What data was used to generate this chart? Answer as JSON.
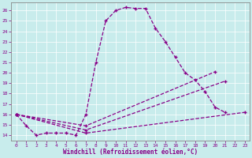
{
  "xlabel": "Windchill (Refroidissement éolien,°C)",
  "ylabel": "",
  "background_color": "#c8ecec",
  "line_color": "#880088",
  "xlim": [
    -0.5,
    23.5
  ],
  "ylim": [
    13.5,
    26.8
  ],
  "yticks": [
    14,
    15,
    16,
    17,
    18,
    19,
    20,
    21,
    22,
    23,
    24,
    25,
    26
  ],
  "xticks": [
    0,
    1,
    2,
    3,
    4,
    5,
    6,
    7,
    8,
    9,
    10,
    11,
    12,
    13,
    14,
    15,
    16,
    17,
    18,
    19,
    20,
    21,
    22,
    23
  ],
  "lines": [
    {
      "x": [
        0,
        1,
        2,
        3,
        4,
        5,
        6,
        7,
        8,
        9,
        10,
        11,
        12,
        13,
        14,
        15,
        16,
        17,
        18,
        19,
        20,
        21
      ],
      "y": [
        16.0,
        14.9,
        14.0,
        14.2,
        14.2,
        14.2,
        14.0,
        16.0,
        21.0,
        25.0,
        26.0,
        26.3,
        26.2,
        26.2,
        24.3,
        23.0,
        21.5,
        20.0,
        19.3,
        18.2,
        16.7,
        16.2
      ]
    },
    {
      "comment": "Line from (0,16) through (7,14.9) to (20,20.1)",
      "x": [
        0,
        7,
        20
      ],
      "y": [
        16.0,
        14.9,
        20.1
      ]
    },
    {
      "comment": "Line from (0,16) through (7,14.5) to (21,19.2)",
      "x": [
        0,
        7,
        21
      ],
      "y": [
        16.0,
        14.5,
        19.2
      ]
    },
    {
      "comment": "Line from (0,16) through (7,14.2) to (23,16.2)",
      "x": [
        0,
        7,
        23
      ],
      "y": [
        16.0,
        14.2,
        16.2
      ]
    }
  ]
}
